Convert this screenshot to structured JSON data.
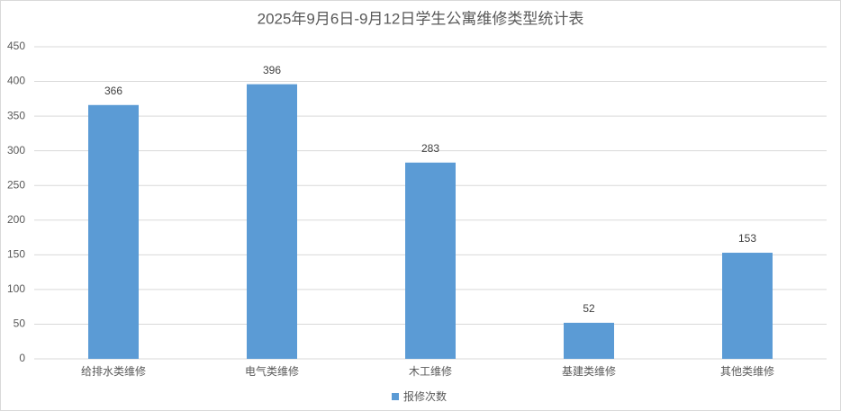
{
  "chart_data": {
    "type": "bar",
    "title": "2025年9月6日-9月12日学生公寓维修类型统计表",
    "categories": [
      "给排水类维修",
      "电气类维修",
      "木工维修",
      "基建类维修",
      "其他类维修"
    ],
    "series": [
      {
        "name": "报修次数",
        "color": "#5b9bd5",
        "values": [
          366,
          396,
          283,
          52,
          153
        ]
      }
    ],
    "ylim": [
      0,
      450
    ],
    "yticks": [
      0,
      50,
      100,
      150,
      200,
      250,
      300,
      350,
      400,
      450
    ],
    "grid": true,
    "legend": "bottom",
    "data_labels": true
  }
}
